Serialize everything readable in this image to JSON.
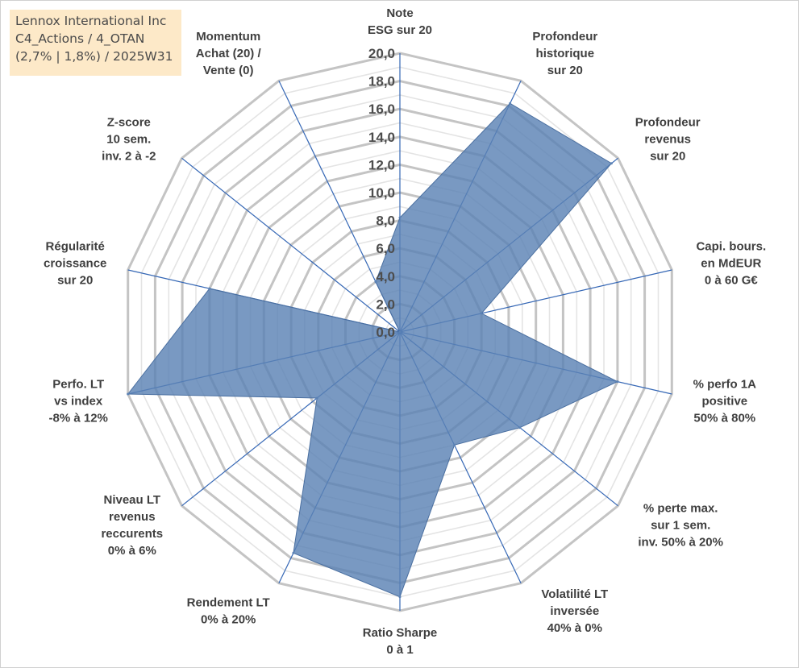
{
  "title_box": {
    "line1": "Lennox International Inc",
    "line2": "C4_Actions / 4_OTAN",
    "line3": "(2,7% | 1,8%) / 2025W31"
  },
  "colors": {
    "fill": "#5b82b5",
    "spoke": "#3567b5",
    "grid_major": "#c4c4c4",
    "grid_minor": "#e4e4e4",
    "title_bg": "#fde9c8"
  },
  "chart_data": {
    "type": "radar",
    "rmin": 0,
    "rmax": 20,
    "major_step": 2,
    "minor_step": 1,
    "tick_labels": [
      "0,0",
      "2,0",
      "4,0",
      "6,0",
      "8,0",
      "10,0",
      "12,0",
      "14,0",
      "16,0",
      "18,0",
      "20,0"
    ],
    "categories": [
      [
        "Note",
        "ESG sur 20"
      ],
      [
        "Profondeur",
        "historique",
        "sur 20"
      ],
      [
        "Profondeur",
        "revenus",
        "sur 20"
      ],
      [
        "Capi. bours.",
        "en MdEUR",
        "0 à 60 G€"
      ],
      [
        "% perfo 1A",
        "positive",
        "50% à 80%"
      ],
      [
        "% perte max.",
        "sur 1 sem.",
        "inv. 50% à 20%"
      ],
      [
        "Volatilité LT",
        "inversée",
        "40% à 0%"
      ],
      [
        "Ratio Sharpe",
        "0 à 1"
      ],
      [
        "Rendement LT",
        "0% à 20%"
      ],
      [
        "Niveau LT",
        "revenus",
        "reccurents",
        "0% à 6%"
      ],
      [
        "Perfo. LT",
        "vs index",
        "-8% à 12%"
      ],
      [
        "Régularité",
        "croissance",
        "sur 20"
      ],
      [
        "Z-score",
        "10 sem.",
        "inv. 2 à -2"
      ],
      [
        "Momentum",
        "Achat (20) /",
        "Vente (0)"
      ]
    ],
    "values": [
      8.2,
      18.2,
      19.4,
      6.0,
      16.0,
      11.0,
      9.0,
      19.0,
      17.6,
      7.6,
      20.0,
      14.0,
      0.0,
      4.0
    ],
    "grid": true,
    "legend": "none"
  }
}
